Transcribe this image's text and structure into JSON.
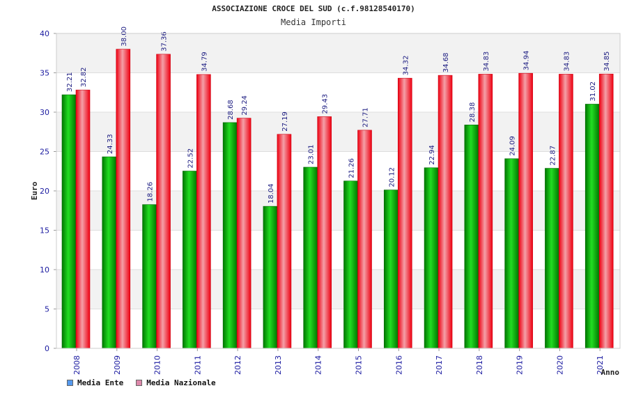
{
  "chart_data": {
    "type": "bar",
    "title": "ASSOCIAZIONE CROCE DEL SUD (c.f.98128540170)",
    "subtitle": "Media Importi",
    "xlabel": "Anno",
    "ylabel": "Euro",
    "ylim": [
      0,
      40
    ],
    "yticks": [
      "0",
      "5",
      "10",
      "15",
      "20",
      "25",
      "30",
      "35",
      "40"
    ],
    "grid": true,
    "legend_position": "bottom-left",
    "categories": [
      "2008",
      "2009",
      "2010",
      "2011",
      "2012",
      "2013",
      "2014",
      "2015",
      "2016",
      "2017",
      "2018",
      "2019",
      "2020",
      "2021"
    ],
    "series": [
      {
        "name": "Media Ente",
        "color": "#00bb00",
        "legend_color": "#5599ee",
        "values": [
          32.21,
          24.33,
          18.26,
          22.52,
          28.68,
          18.04,
          23.01,
          21.26,
          20.12,
          22.94,
          28.38,
          24.09,
          22.87,
          31.02
        ],
        "labels": [
          "32.21",
          "24.33",
          "18.26",
          "22.52",
          "28.68",
          "18.04",
          "23.01",
          "21.26",
          "20.12",
          "22.94",
          "28.38",
          "24.09",
          "22.87",
          "31.02"
        ]
      },
      {
        "name": "Media Nazionale",
        "color": "#ee1122",
        "legend_color": "#dd88aa",
        "values": [
          32.82,
          38.0,
          37.36,
          34.79,
          29.24,
          27.19,
          29.43,
          27.71,
          34.32,
          34.68,
          34.83,
          34.94,
          34.83,
          34.85
        ],
        "labels": [
          "32.82",
          "38.00",
          "37.36",
          "34.79",
          "29.24",
          "27.19",
          "29.43",
          "27.71",
          "34.32",
          "34.68",
          "34.83",
          "34.94",
          "34.83",
          "34.85"
        ]
      }
    ]
  }
}
